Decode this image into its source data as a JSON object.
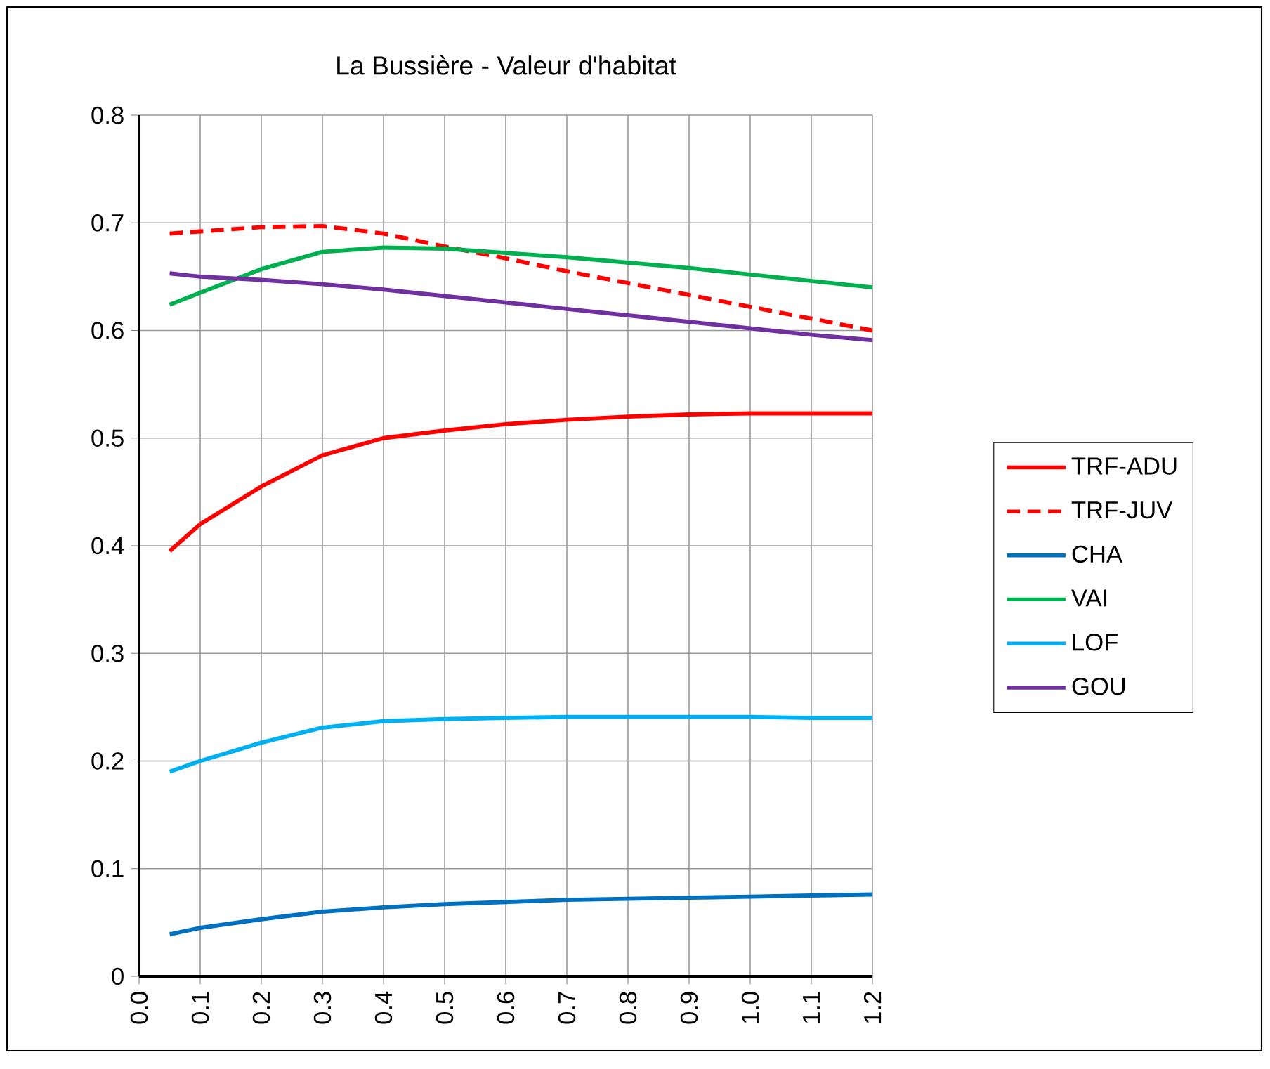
{
  "chart_data": {
    "type": "line",
    "title": "La Bussière - Valeur d'habitat",
    "x": [
      0.05,
      0.1,
      0.2,
      0.3,
      0.4,
      0.5,
      0.6,
      0.7,
      0.8,
      0.9,
      1.0,
      1.1,
      1.2
    ],
    "series": [
      {
        "name": "TRF-ADU",
        "color": "#ff0000",
        "values": [
          0.395,
          0.42,
          0.455,
          0.484,
          0.5,
          0.507,
          0.513,
          0.517,
          0.52,
          0.522,
          0.523,
          0.523,
          0.523
        ]
      },
      {
        "name": "TRF-JUV",
        "color": "#ff0000",
        "line_style": "dashed",
        "values": [
          0.69,
          0.692,
          0.696,
          0.697,
          0.69,
          0.678,
          0.667,
          0.655,
          0.644,
          0.633,
          0.622,
          0.611,
          0.6
        ]
      },
      {
        "name": "CHA",
        "color": "#0070c0",
        "values": [
          0.039,
          0.045,
          0.053,
          0.06,
          0.064,
          0.067,
          0.069,
          0.071,
          0.072,
          0.073,
          0.074,
          0.075,
          0.076
        ]
      },
      {
        "name": "VAI",
        "color": "#00b050",
        "values": [
          0.624,
          0.635,
          0.657,
          0.673,
          0.677,
          0.676,
          0.672,
          0.668,
          0.663,
          0.658,
          0.652,
          0.646,
          0.64
        ]
      },
      {
        "name": "LOF",
        "color": "#00b0f0",
        "values": [
          0.19,
          0.2,
          0.217,
          0.231,
          0.237,
          0.239,
          0.24,
          0.241,
          0.241,
          0.241,
          0.241,
          0.24,
          0.24
        ]
      },
      {
        "name": "GOU",
        "color": "#7030a0",
        "values": [
          0.653,
          0.65,
          0.647,
          0.643,
          0.638,
          0.632,
          0.626,
          0.62,
          0.614,
          0.608,
          0.602,
          0.596,
          0.591
        ]
      }
    ],
    "xlim": [
      0,
      1.2
    ],
    "ylim": [
      0,
      0.8
    ],
    "xticks": [
      {
        "value": 0,
        "label": "0.0"
      },
      0.1,
      0.2,
      0.3,
      0.4,
      0.5,
      0.6,
      0.7,
      0.8,
      0.9,
      {
        "value": 1.0,
        "label": "1.0"
      },
      1.1,
      1.2
    ],
    "yticks": [
      0,
      0.1,
      0.2,
      0.3,
      0.4,
      0.5,
      0.6,
      0.7,
      0.8
    ],
    "grid": true,
    "legend": "right"
  }
}
